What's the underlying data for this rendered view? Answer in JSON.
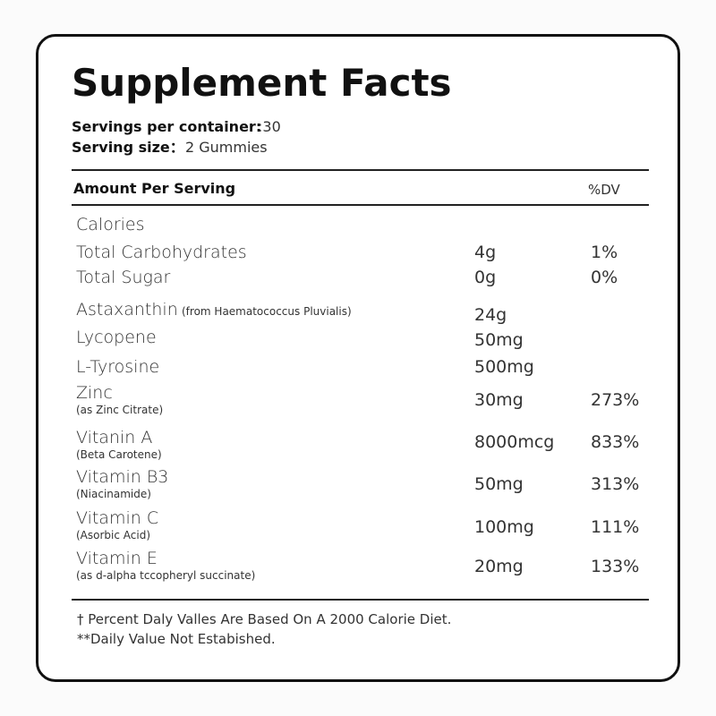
{
  "title": "Supplement Facts",
  "servings": {
    "label": "Servings per container:",
    "value": ":30"
  },
  "serving_size": {
    "label": "Serving size：",
    "value": "2 Gummies"
  },
  "table": {
    "header": {
      "amount": "Amount Per Serving",
      "dv": "%DV"
    },
    "rows": [
      {
        "name": "Calories"
      },
      {
        "name": "Total Carbohydrates",
        "amount": "4g",
        "dv": "1%"
      },
      {
        "name": "Total Sugar",
        "amount": "0g",
        "dv": "0%"
      },
      {
        "name": "Astaxanthin",
        "note": "(from Haematococcus Pluvialis)",
        "amount": "24g"
      },
      {
        "name": "Lycopene",
        "amount": "50mg"
      },
      {
        "name": "L-Tyrosine",
        "amount": "500mg"
      },
      {
        "name": "Zinc",
        "note": "(as Zinc Citrate)",
        "amount": "30mg",
        "dv": "273%"
      },
      {
        "name": "Vitanin A",
        "note": "(Beta Carotene)",
        "amount": "8000mcg",
        "dv": "833%"
      },
      {
        "name": "Vitamin B3",
        "note": "(Niacinamide)",
        "amount": "50mg",
        "dv": "313%"
      },
      {
        "name": "Vitamin C",
        "note": "(Asorbic Acid)",
        "amount": "100mg",
        "dv": "111%"
      },
      {
        "name": "Vitamin E",
        "note": "(as d-alpha tccopheryl succinate)",
        "amount": "20mg",
        "dv": "133%"
      }
    ]
  },
  "footnotes": [
    "† Percent Daly Valles Are Based On A 2000 Calorie Diet.",
    "**Daily Value Not Estabished."
  ]
}
